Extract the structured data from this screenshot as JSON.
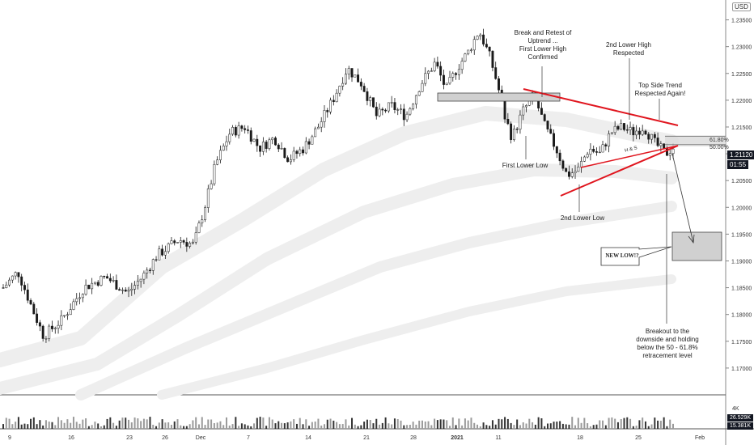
{
  "currency": "USD",
  "chart_data": {
    "type": "candlestick",
    "title": "",
    "ylim": [
      1.165,
      1.2375
    ],
    "yticks": [
      1.17,
      1.175,
      1.18,
      1.185,
      1.19,
      1.195,
      1.2,
      1.205,
      1.21,
      1.215,
      1.22,
      1.225,
      1.23,
      1.235
    ],
    "xticks": [
      "9",
      "16",
      "23",
      "26",
      "Dec",
      "7",
      "14",
      "21",
      "28",
      "2021",
      "11",
      "18",
      "25",
      "Feb"
    ],
    "price_path": [
      {
        "t": 0.0,
        "p": 1.185
      },
      {
        "t": 0.02,
        "p": 1.188
      },
      {
        "t": 0.04,
        "p": 1.181
      },
      {
        "t": 0.055,
        "p": 1.176
      },
      {
        "t": 0.08,
        "p": 1.179
      },
      {
        "t": 0.11,
        "p": 1.185
      },
      {
        "t": 0.14,
        "p": 1.187
      },
      {
        "t": 0.17,
        "p": 1.184
      },
      {
        "t": 0.19,
        "p": 1.187
      },
      {
        "t": 0.21,
        "p": 1.191
      },
      {
        "t": 0.24,
        "p": 1.194
      },
      {
        "t": 0.26,
        "p": 1.193
      },
      {
        "t": 0.275,
        "p": 1.2
      },
      {
        "t": 0.29,
        "p": 1.208
      },
      {
        "t": 0.31,
        "p": 1.214
      },
      {
        "t": 0.33,
        "p": 1.215
      },
      {
        "t": 0.35,
        "p": 1.211
      },
      {
        "t": 0.37,
        "p": 1.213
      },
      {
        "t": 0.39,
        "p": 1.209
      },
      {
        "t": 0.41,
        "p": 1.211
      },
      {
        "t": 0.43,
        "p": 1.215
      },
      {
        "t": 0.45,
        "p": 1.22
      },
      {
        "t": 0.47,
        "p": 1.226
      },
      {
        "t": 0.49,
        "p": 1.223
      },
      {
        "t": 0.51,
        "p": 1.217
      },
      {
        "t": 0.53,
        "p": 1.219
      },
      {
        "t": 0.55,
        "p": 1.217
      },
      {
        "t": 0.57,
        "p": 1.223
      },
      {
        "t": 0.59,
        "p": 1.227
      },
      {
        "t": 0.605,
        "p": 1.222
      },
      {
        "t": 0.62,
        "p": 1.226
      },
      {
        "t": 0.635,
        "p": 1.229
      },
      {
        "t": 0.65,
        "p": 1.233
      },
      {
        "t": 0.665,
        "p": 1.228
      },
      {
        "t": 0.675,
        "p": 1.223
      },
      {
        "t": 0.685,
        "p": 1.217
      },
      {
        "t": 0.695,
        "p": 1.213
      },
      {
        "t": 0.71,
        "p": 1.218
      },
      {
        "t": 0.725,
        "p": 1.221
      },
      {
        "t": 0.74,
        "p": 1.215
      },
      {
        "t": 0.755,
        "p": 1.211
      },
      {
        "t": 0.77,
        "p": 1.206
      },
      {
        "t": 0.785,
        "p": 1.207
      },
      {
        "t": 0.8,
        "p": 1.211
      },
      {
        "t": 0.815,
        "p": 1.21
      },
      {
        "t": 0.83,
        "p": 1.214
      },
      {
        "t": 0.845,
        "p": 1.215
      },
      {
        "t": 0.86,
        "p": 1.214
      },
      {
        "t": 0.875,
        "p": 1.215
      },
      {
        "t": 0.89,
        "p": 1.212
      },
      {
        "t": 0.905,
        "p": 1.21
      },
      {
        "t": 0.915,
        "p": 1.2112
      }
    ],
    "volume_ticks": [
      "4K",
      "26.529K",
      "15.381K"
    ],
    "last_price": "1.21120",
    "countdown": "01:55",
    "fib_levels": [
      {
        "label": "61.80%",
        "price": 1.2133
      },
      {
        "label": "50.00%",
        "price": 1.2117
      }
    ],
    "annotations": {
      "break_retest": "Break and Retest of\nUptrend ...\nFirst Lower High\nConfirmed",
      "second_lower_high": "2nd Lower High\nRespected",
      "top_side": "Top Side Trend\nRespected Again!",
      "first_lower_low": "First Lower Low",
      "second_lower_low": "2nd Lower Low",
      "hs": "H & S",
      "new_low": "NEW LOW!?",
      "breakout": "Breakout to the\ndownside and holding\nbelow the 50 - 61.8%\nretracement level"
    },
    "colors": {
      "trendline": "#e0151e",
      "bars": "#1a1a1a",
      "bands": "#eeeeee",
      "zones": "#d0d0d0",
      "tag_dark": "#131722",
      "fib_highlight": "#d9d9d9"
    }
  }
}
